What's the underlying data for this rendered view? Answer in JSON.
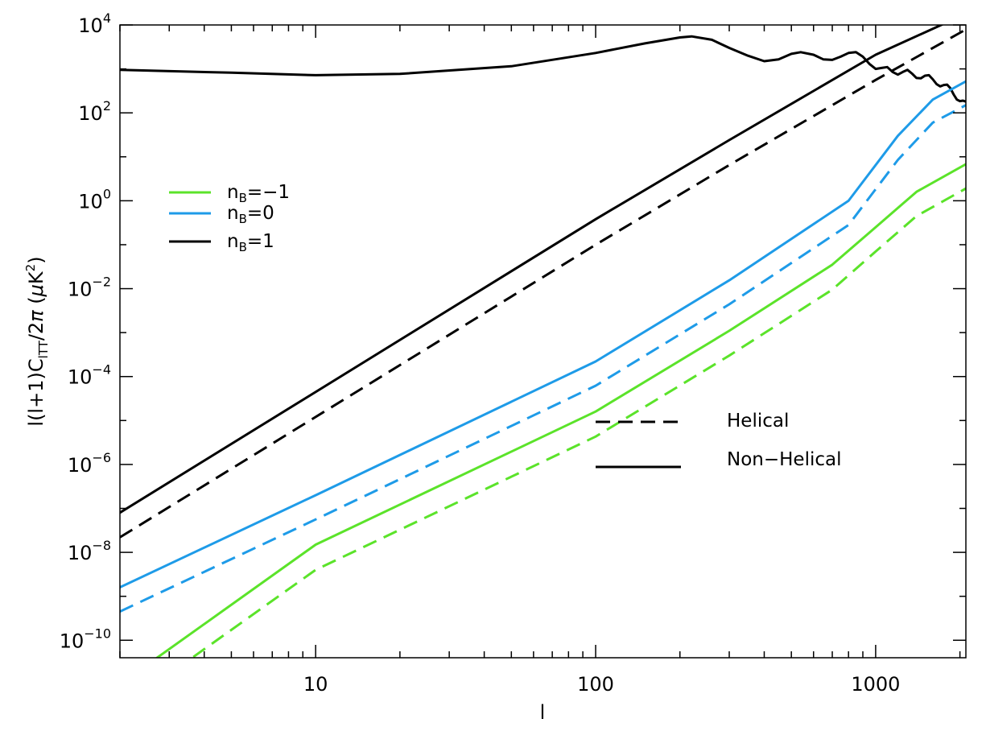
{
  "chart_data": {
    "type": "line",
    "title": "",
    "xlabel": "l",
    "ylabel": "l(l+1)C_lTT/2π (μK²)",
    "ylabel_parts": {
      "pre": "l(l+1)C",
      "sub": "lTT",
      "mid": "/2",
      "pi": "π",
      "unit_open": " (",
      "mu": "μ",
      "unit_K": "K",
      "unit_sup": "2",
      "unit_close": ")"
    },
    "x_scale": "log",
    "y_scale": "log",
    "xlim": [
      2,
      2100
    ],
    "ylim": [
      4e-11,
      10000
    ],
    "x_ticks": [
      {
        "value": 10,
        "label": "10"
      },
      {
        "value": 100,
        "label": "100"
      },
      {
        "value": 1000,
        "label": "1000"
      }
    ],
    "y_ticks": [
      {
        "exp": -10,
        "base": "10",
        "sup": "−10"
      },
      {
        "exp": -8,
        "base": "10",
        "sup": "−8"
      },
      {
        "exp": -6,
        "base": "10",
        "sup": "−6"
      },
      {
        "exp": -4,
        "base": "10",
        "sup": "−4"
      },
      {
        "exp": -2,
        "base": "10",
        "sup": "−2"
      },
      {
        "exp": 0,
        "base": "10",
        "sup": "0"
      },
      {
        "exp": 2,
        "base": "10",
        "sup": "2"
      },
      {
        "exp": 4,
        "base": "10",
        "sup": "4"
      }
    ],
    "grid": false,
    "legend_colors": {
      "position": "upper-left",
      "entries": [
        {
          "prefix": "n",
          "sub": "B",
          "suffix": "=−1",
          "color": "#5be32a"
        },
        {
          "prefix": "n",
          "sub": "B",
          "suffix": "=0",
          "color": "#1e9be8"
        },
        {
          "prefix": "n",
          "sub": "B",
          "suffix": "=1",
          "color": "#000000"
        }
      ]
    },
    "legend_styles": {
      "position": "center-right",
      "entries": [
        {
          "label": "Helical",
          "dash": "dashed"
        },
        {
          "label": "Non−Helical",
          "dash": "solid"
        }
      ]
    },
    "series": [
      {
        "key": "cmb",
        "color": "#000000",
        "dash": "solid",
        "x": [
          2,
          5,
          10,
          20,
          50,
          100,
          150,
          200,
          220,
          260,
          300,
          350,
          400,
          450,
          500,
          540,
          600,
          650,
          700,
          750,
          800,
          850,
          900,
          950,
          1000,
          1050,
          1100,
          1150,
          1200,
          1250,
          1300,
          1350,
          1400,
          1450,
          1500,
          1550,
          1600,
          1650,
          1700,
          1750,
          1800,
          1850,
          1900,
          1950,
          2000,
          2050,
          2100
        ],
        "y": [
          950,
          820,
          720,
          770,
          1150,
          2300,
          3800,
          5200,
          5500,
          4600,
          3000,
          2000,
          1500,
          1650,
          2200,
          2400,
          2100,
          1650,
          1600,
          1900,
          2300,
          2400,
          1900,
          1300,
          1000,
          1050,
          1100,
          850,
          740,
          850,
          950,
          780,
          620,
          610,
          700,
          720,
          580,
          450,
          400,
          430,
          440,
          360,
          260,
          200,
          185,
          190,
          180
        ]
      },
      {
        "key": "nB1-nonhelical",
        "color": "#000000",
        "dash": "solid",
        "x": [
          2,
          100,
          300,
          1000,
          2100
        ],
        "y": [
          8e-08,
          0.38,
          24,
          2100,
          18000
        ]
      },
      {
        "key": "nB1-helical",
        "color": "#000000",
        "dash": "dashed",
        "x": [
          2,
          100,
          300,
          1000,
          2100
        ],
        "y": [
          2.2e-08,
          0.1,
          6.5,
          560,
          7900
        ]
      },
      {
        "key": "nB0-nonhelical",
        "color": "#1e9be8",
        "dash": "solid",
        "x": [
          2,
          10,
          100,
          300,
          800,
          1200,
          1600,
          2100
        ],
        "y": [
          1.6e-09,
          2e-07,
          0.00022,
          0.0155,
          1.0,
          30,
          200,
          520
        ]
      },
      {
        "key": "nB0-helical",
        "color": "#1e9be8",
        "dash": "dashed",
        "x": [
          2,
          10,
          100,
          300,
          800,
          1200,
          1600,
          2100
        ],
        "y": [
          4.5e-10,
          5.6e-08,
          6.2e-05,
          0.0044,
          0.28,
          8.5,
          60,
          150
        ]
      },
      {
        "key": "nBm1-nonhelical",
        "color": "#5be32a",
        "dash": "solid",
        "x": [
          2,
          10,
          100,
          300,
          700,
          1000,
          1400,
          2100
        ],
        "y": [
          1e-11,
          1.5e-08,
          1.6e-05,
          0.0011,
          0.035,
          0.25,
          1.6,
          6.8
        ]
      },
      {
        "key": "nBm1-helical",
        "color": "#5be32a",
        "dash": "dashed",
        "x": [
          2,
          10,
          100,
          300,
          700,
          1000,
          1400,
          2100
        ],
        "y": [
          2.7e-12,
          4e-09,
          4.3e-06,
          0.0003,
          0.0095,
          0.07,
          0.45,
          1.9
        ]
      }
    ]
  }
}
